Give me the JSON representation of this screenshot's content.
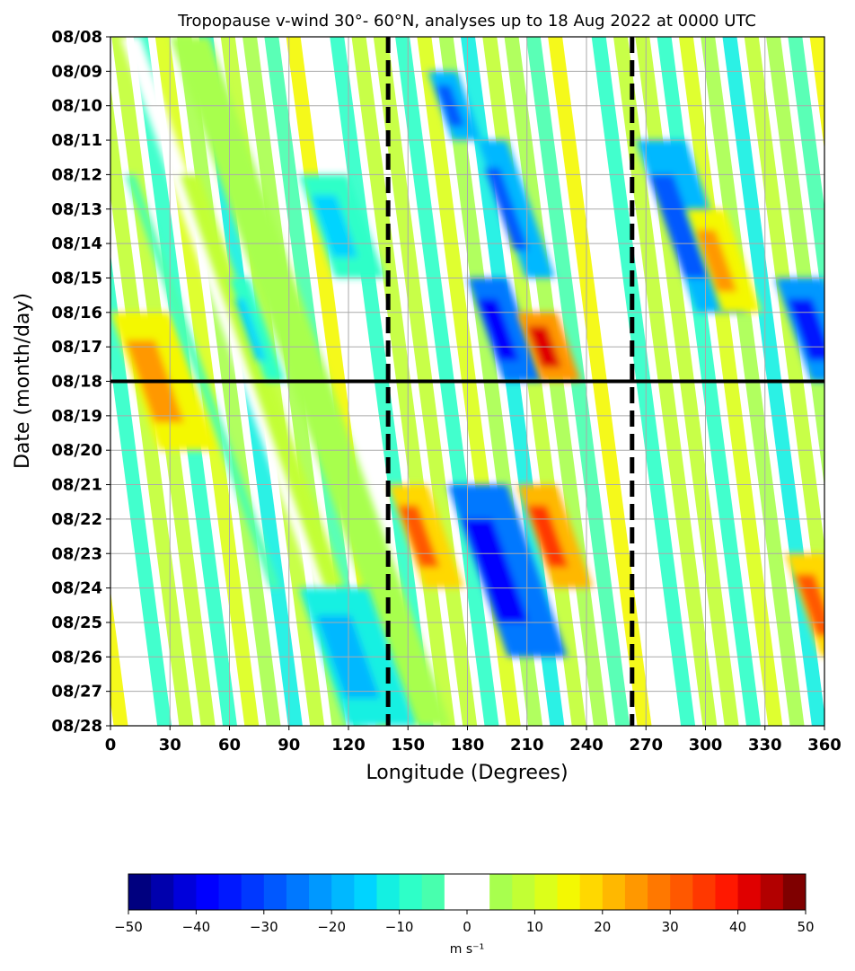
{
  "chart_data": {
    "type": "heatmap",
    "title": "Tropopause v-wind 30°- 60°N, analyses up to 18 Aug 2022 at 0000 UTC",
    "xlabel": "Longitude (Degrees)",
    "ylabel": "Date (month/day)",
    "xlim": [
      0,
      360
    ],
    "x_ticks": [
      "0",
      "30",
      "60",
      "90",
      "120",
      "150",
      "180",
      "210",
      "240",
      "270",
      "300",
      "330",
      "360"
    ],
    "y_ticks": [
      "08/08",
      "08/09",
      "08/10",
      "08/11",
      "08/12",
      "08/13",
      "08/14",
      "08/15",
      "08/16",
      "08/17",
      "08/18",
      "08/19",
      "08/20",
      "08/21",
      "08/22",
      "08/23",
      "08/24",
      "08/25",
      "08/26",
      "08/27",
      "08/28"
    ],
    "grid": true,
    "analysis_line_date": "08/18",
    "reference_longitudes": [
      140,
      263
    ],
    "colorbar": {
      "label": "m s⁻¹",
      "range": [
        -50,
        50
      ],
      "ticks": [
        "−50",
        "−40",
        "−30",
        "−20",
        "−10",
        "0",
        "10",
        "20",
        "30",
        "40",
        "50"
      ],
      "colors": [
        "#00007f",
        "#0000ad",
        "#0000db",
        "#0000ff",
        "#0018ff",
        "#0038ff",
        "#0058ff",
        "#0078ff",
        "#0098ff",
        "#00b8ff",
        "#00d4ff",
        "#14f0e2",
        "#2effc8",
        "#48ffae",
        "#ffffff",
        "#ffffff",
        "#a8ff4e",
        "#c2ff34",
        "#dcff1a",
        "#f4f802",
        "#ffd800",
        "#ffb800",
        "#ff9800",
        "#ff7800",
        "#ff5800",
        "#ff3800",
        "#ff1800",
        "#e00000",
        "#b20000",
        "#7f0000"
      ]
    },
    "wind_bands": [
      {
        "lon_start": 0,
        "lon_end": 30,
        "date_start": "08/16",
        "date_end": "08/20",
        "v": 25
      },
      {
        "lon_start": 5,
        "lon_end": 15,
        "date_start": "08/08",
        "date_end": "08/28",
        "v": -5
      },
      {
        "lon_start": 30,
        "lon_end": 50,
        "date_start": "08/08",
        "date_end": "08/28",
        "v": 8
      },
      {
        "lon_start": 60,
        "lon_end": 70,
        "date_start": "08/15",
        "date_end": "08/18",
        "v": -15
      },
      {
        "lon_start": 95,
        "lon_end": 120,
        "date_start": "08/12",
        "date_end": "08/15",
        "v": -15
      },
      {
        "lon_start": 95,
        "lon_end": 130,
        "date_start": "08/24",
        "date_end": "08/28",
        "v": -20
      },
      {
        "lon_start": 140,
        "lon_end": 160,
        "date_start": "08/21",
        "date_end": "08/24",
        "v": 30
      },
      {
        "lon_start": 160,
        "lon_end": 175,
        "date_start": "08/09",
        "date_end": "08/11",
        "v": -30
      },
      {
        "lon_start": 180,
        "lon_end": 200,
        "date_start": "08/15",
        "date_end": "08/18",
        "v": -40
      },
      {
        "lon_start": 185,
        "lon_end": 200,
        "date_start": "08/11",
        "date_end": "08/15",
        "v": -30
      },
      {
        "lon_start": 205,
        "lon_end": 225,
        "date_start": "08/16",
        "date_end": "08/18",
        "v": 40
      },
      {
        "lon_start": 170,
        "lon_end": 200,
        "date_start": "08/21",
        "date_end": "08/26",
        "v": -40
      },
      {
        "lon_start": 205,
        "lon_end": 225,
        "date_start": "08/21",
        "date_end": "08/24",
        "v": 35
      },
      {
        "lon_start": 265,
        "lon_end": 290,
        "date_start": "08/11",
        "date_end": "08/16",
        "v": -30
      },
      {
        "lon_start": 290,
        "lon_end": 310,
        "date_start": "08/13",
        "date_end": "08/16",
        "v": 25
      },
      {
        "lon_start": 335,
        "lon_end": 360,
        "date_start": "08/15",
        "date_end": "08/18",
        "v": -35
      },
      {
        "lon_start": 340,
        "lon_end": 360,
        "date_start": "08/23",
        "date_end": "08/26",
        "v": 30
      }
    ]
  }
}
